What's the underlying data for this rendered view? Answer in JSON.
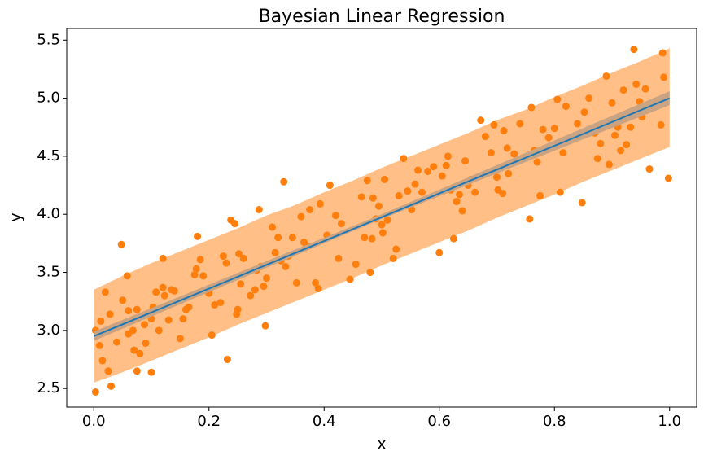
{
  "chart_data": {
    "type": "scatter",
    "title": "Bayesian Linear Regression",
    "x_label": "x",
    "y_label": "y",
    "xlim": [
      -0.047,
      1.047
    ],
    "ylim": [
      2.34,
      5.6
    ],
    "xticks": [
      {
        "value": 0,
        "label": "0.0"
      },
      0.2,
      0.4,
      0.6,
      0.8,
      {
        "value": 1,
        "label": "1.0"
      }
    ],
    "yticks": [
      2.5,
      {
        "value": 3,
        "label": "3.0"
      },
      3.5,
      {
        "value": 4,
        "label": "4.0"
      },
      4.5,
      {
        "value": 5,
        "label": "5.0"
      },
      5.5
    ],
    "band": {
      "color": "#ffbf86",
      "x": [
        0,
        0.05,
        0.1,
        0.15,
        0.2,
        0.25,
        0.3,
        0.35,
        0.4,
        0.45,
        0.5,
        0.55,
        0.6,
        0.65,
        0.7,
        0.75,
        0.8,
        0.85,
        0.9,
        0.95,
        1
      ],
      "lower": [
        2.55,
        2.64,
        2.74,
        2.84,
        2.94,
        3.05,
        3.15,
        3.25,
        3.35,
        3.45,
        3.56,
        3.66,
        3.76,
        3.86,
        3.97,
        4.07,
        4.17,
        4.28,
        4.38,
        4.48,
        4.58
      ],
      "upper": [
        3.35,
        3.47,
        3.58,
        3.68,
        3.78,
        3.88,
        3.99,
        4.08,
        4.19,
        4.29,
        4.4,
        4.5,
        4.6,
        4.7,
        4.81,
        4.9,
        5.01,
        5.11,
        5.22,
        5.32,
        5.43
      ]
    },
    "mean_band": {
      "color": "#c9a382",
      "x": [
        0,
        0.5,
        1
      ],
      "lower": [
        2.91,
        3.96,
        4.94
      ],
      "upper": [
        2.99,
        4.0,
        5.06
      ]
    },
    "line": {
      "color": "#1f77b4",
      "x": [
        0,
        1
      ],
      "y": [
        2.95,
        5.0
      ]
    },
    "points": {
      "color": "#ff7f0e",
      "x": [
        0.003,
        0.003,
        0.01,
        0.012,
        0.015,
        0.02,
        0.025,
        0.028,
        0.03,
        0.033,
        0.04,
        0.048,
        0.05,
        0.058,
        0.06,
        0.06,
        0.068,
        0.07,
        0.075,
        0.075,
        0.08,
        0.088,
        0.09,
        0.1,
        0.1,
        0.103,
        0.108,
        0.113,
        0.12,
        0.12,
        0.123,
        0.13,
        0.135,
        0.14,
        0.15,
        0.155,
        0.16,
        0.165,
        0.175,
        0.178,
        0.18,
        0.185,
        0.19,
        0.2,
        0.205,
        0.21,
        0.22,
        0.225,
        0.23,
        0.232,
        0.238,
        0.245,
        0.248,
        0.25,
        0.252,
        0.255,
        0.26,
        0.272,
        0.28,
        0.283,
        0.287,
        0.29,
        0.295,
        0.298,
        0.3,
        0.31,
        0.315,
        0.32,
        0.325,
        0.33,
        0.333,
        0.338,
        0.345,
        0.352,
        0.36,
        0.365,
        0.37,
        0.375,
        0.385,
        0.39,
        0.393,
        0.405,
        0.41,
        0.42,
        0.425,
        0.43,
        0.445,
        0.455,
        0.465,
        0.47,
        0.475,
        0.48,
        0.483,
        0.485,
        0.49,
        0.495,
        0.5,
        0.502,
        0.505,
        0.51,
        0.52,
        0.525,
        0.53,
        0.538,
        0.545,
        0.552,
        0.558,
        0.563,
        0.57,
        0.58,
        0.59,
        0.6,
        0.605,
        0.612,
        0.615,
        0.62,
        0.625,
        0.63,
        0.635,
        0.64,
        0.645,
        0.65,
        0.655,
        0.662,
        0.672,
        0.68,
        0.69,
        0.695,
        0.7,
        0.702,
        0.71,
        0.712,
        0.718,
        0.72,
        0.73,
        0.74,
        0.757,
        0.76,
        0.765,
        0.77,
        0.775,
        0.78,
        0.79,
        0.8,
        0.805,
        0.81,
        0.815,
        0.82,
        0.83,
        0.84,
        0.848,
        0.852,
        0.86,
        0.87,
        0.875,
        0.88,
        0.89,
        0.895,
        0.9,
        0.905,
        0.91,
        0.915,
        0.92,
        0.925,
        0.932,
        0.938,
        0.942,
        0.948,
        0.952,
        0.958,
        0.965,
        0.975,
        0.985,
        0.988,
        0.99,
        0.998
      ],
      "y": [
        3.0,
        2.47,
        2.87,
        3.08,
        2.74,
        3.33,
        2.65,
        3.14,
        2.52,
        3.02,
        2.9,
        3.74,
        3.26,
        3.47,
        3.17,
        2.97,
        3.0,
        2.83,
        3.18,
        2.65,
        2.8,
        3.05,
        2.89,
        2.64,
        3.1,
        3.2,
        3.33,
        3.0,
        3.37,
        3.62,
        3.3,
        3.09,
        3.35,
        3.34,
        2.93,
        3.1,
        3.18,
        3.2,
        3.48,
        3.53,
        3.81,
        3.61,
        3.47,
        3.32,
        2.96,
        3.22,
        3.24,
        3.64,
        3.58,
        2.75,
        3.95,
        3.92,
        3.14,
        3.18,
        3.66,
        3.4,
        3.62,
        3.3,
        3.35,
        3.52,
        4.04,
        3.55,
        3.38,
        3.04,
        3.45,
        3.89,
        3.67,
        3.8,
        3.6,
        4.28,
        3.55,
        3.64,
        3.8,
        3.41,
        3.98,
        3.76,
        3.73,
        4.04,
        3.41,
        3.36,
        4.09,
        3.82,
        4.25,
        3.99,
        3.62,
        3.92,
        3.44,
        3.57,
        4.15,
        3.8,
        4.29,
        3.5,
        3.79,
        4.14,
        3.96,
        4.07,
        3.91,
        3.84,
        4.3,
        3.95,
        3.62,
        3.7,
        4.16,
        4.48,
        4.2,
        4.04,
        4.26,
        4.38,
        4.19,
        4.37,
        4.41,
        3.67,
        4.33,
        4.42,
        4.5,
        4.21,
        3.79,
        4.11,
        4.17,
        4.03,
        4.46,
        4.25,
        4.3,
        4.19,
        4.81,
        4.67,
        4.53,
        4.77,
        4.32,
        4.21,
        4.18,
        4.72,
        4.57,
        4.35,
        4.52,
        4.78,
        3.96,
        4.92,
        4.55,
        4.45,
        4.16,
        4.73,
        4.66,
        4.74,
        4.99,
        4.19,
        4.53,
        4.93,
        4.65,
        4.78,
        4.1,
        4.88,
        5.0,
        4.7,
        4.48,
        4.61,
        5.19,
        4.43,
        4.96,
        4.68,
        4.75,
        4.55,
        5.07,
        4.6,
        4.75,
        5.42,
        5.12,
        4.97,
        4.84,
        5.08,
        4.39,
        4.93,
        4.77,
        5.39,
        5.18,
        4.31
      ]
    }
  }
}
